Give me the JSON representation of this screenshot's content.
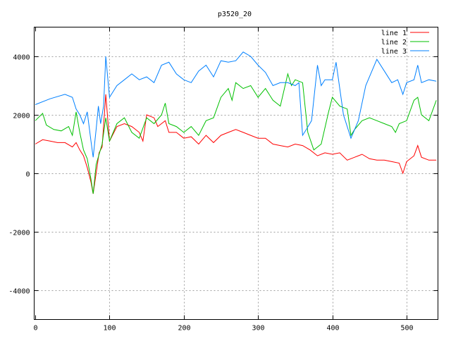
{
  "chart_data": {
    "type": "line",
    "title": "p3520_20",
    "xlabel": "",
    "ylabel": "",
    "xlim": [
      0,
      541
    ],
    "ylim": [
      -5000,
      5000
    ],
    "xticks": [
      0,
      100,
      200,
      300,
      400,
      500
    ],
    "yticks": [
      -4000,
      -2000,
      0,
      2000,
      4000
    ],
    "grid": true,
    "legend_position": "top-right",
    "series": [
      {
        "name": "line 1",
        "color": "#ff0000",
        "x": [
          0,
          10,
          20,
          30,
          40,
          50,
          55,
          60,
          65,
          70,
          75,
          78,
          82,
          86,
          90,
          95,
          100,
          110,
          120,
          130,
          140,
          145,
          150,
          160,
          165,
          175,
          180,
          190,
          200,
          210,
          220,
          230,
          240,
          250,
          260,
          270,
          280,
          290,
          300,
          310,
          320,
          330,
          340,
          350,
          360,
          370,
          380,
          390,
          400,
          410,
          420,
          430,
          440,
          450,
          460,
          470,
          480,
          490,
          495,
          500,
          510,
          515,
          520,
          530,
          540
        ],
        "y": [
          1000,
          1150,
          1100,
          1050,
          1050,
          900,
          1050,
          800,
          600,
          200,
          -300,
          -700,
          0,
          700,
          900,
          2700,
          1100,
          1600,
          1700,
          1600,
          1400,
          1100,
          2000,
          1900,
          1600,
          1800,
          1400,
          1400,
          1200,
          1250,
          1000,
          1300,
          1050,
          1300,
          1400,
          1500,
          1400,
          1300,
          1200,
          1200,
          1000,
          950,
          900,
          1000,
          950,
          800,
          600,
          700,
          650,
          700,
          450,
          550,
          650,
          500,
          450,
          450,
          400,
          350,
          0,
          400,
          600,
          950,
          550,
          450,
          450
        ]
      },
      {
        "name": "line 2",
        "color": "#00c000",
        "x": [
          0,
          10,
          15,
          25,
          35,
          45,
          50,
          55,
          60,
          65,
          70,
          75,
          78,
          82,
          90,
          95,
          100,
          110,
          120,
          130,
          140,
          150,
          160,
          170,
          175,
          180,
          190,
          200,
          210,
          220,
          230,
          240,
          250,
          260,
          265,
          270,
          280,
          290,
          300,
          310,
          320,
          330,
          340,
          345,
          350,
          360,
          367,
          375,
          385,
          395,
          400,
          410,
          420,
          425,
          430,
          440,
          450,
          460,
          470,
          480,
          485,
          490,
          500,
          510,
          515,
          520,
          530,
          540
        ],
        "y": [
          1800,
          2050,
          1650,
          1500,
          1450,
          1600,
          1300,
          2100,
          1400,
          800,
          500,
          -200,
          -700,
          300,
          1000,
          1900,
          1100,
          1700,
          1900,
          1400,
          1200,
          1900,
          1700,
          2000,
          2400,
          1700,
          1600,
          1400,
          1600,
          1300,
          1800,
          1900,
          2600,
          2900,
          2500,
          3100,
          2900,
          3000,
          2600,
          2900,
          2500,
          2300,
          3400,
          3000,
          3200,
          3100,
          1400,
          800,
          1000,
          2100,
          2600,
          2300,
          2200,
          1300,
          1500,
          1800,
          1900,
          1800,
          1700,
          1600,
          1400,
          1700,
          1800,
          2500,
          2600,
          2000,
          1800,
          2500
        ]
      },
      {
        "name": "line 3",
        "color": "#0080ff",
        "x": [
          0,
          20,
          40,
          50,
          55,
          60,
          65,
          70,
          75,
          78,
          82,
          85,
          88,
          92,
          95,
          100,
          110,
          120,
          130,
          140,
          150,
          160,
          170,
          180,
          190,
          200,
          210,
          220,
          230,
          240,
          250,
          260,
          270,
          280,
          290,
          300,
          310,
          320,
          330,
          340,
          350,
          355,
          360,
          365,
          372,
          380,
          385,
          390,
          400,
          405,
          415,
          425,
          435,
          445,
          460,
          470,
          480,
          488,
          495,
          500,
          510,
          515,
          520,
          530,
          540
        ],
        "y": [
          2350,
          2550,
          2700,
          2600,
          2200,
          2000,
          1700,
          2100,
          1100,
          550,
          1500,
          2300,
          1700,
          2300,
          4000,
          2600,
          3000,
          3200,
          3400,
          3200,
          3300,
          3100,
          3700,
          3800,
          3400,
          3200,
          3100,
          3500,
          3700,
          3300,
          3850,
          3800,
          3850,
          4150,
          4000,
          3700,
          3450,
          3000,
          3100,
          3100,
          3000,
          3100,
          1300,
          1500,
          1800,
          3700,
          3000,
          3200,
          3200,
          3800,
          2000,
          1200,
          1800,
          3000,
          3900,
          3500,
          3100,
          3200,
          2700,
          3100,
          3200,
          3700,
          3100,
          3200,
          3150
        ]
      }
    ]
  }
}
